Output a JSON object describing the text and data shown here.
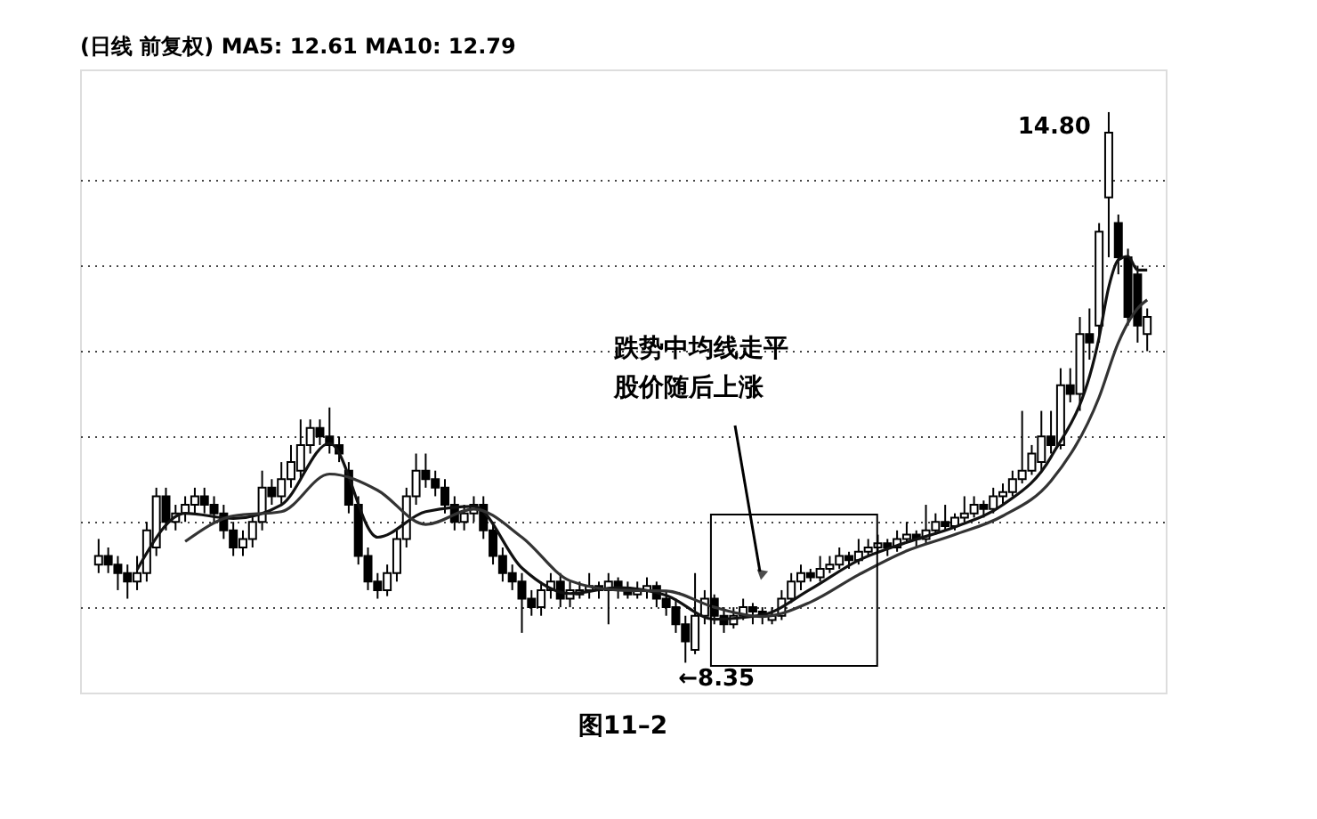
{
  "chart_data": {
    "type": "candlestick",
    "title": "(日线 前复权) MA5: 12.61 MA10: 12.79",
    "categories": [
      null,
      null,
      null,
      null,
      null,
      null,
      null,
      null,
      null,
      null,
      null,
      null,
      null,
      null,
      null,
      null,
      null,
      null,
      null,
      null,
      null,
      null,
      null,
      null,
      null,
      null,
      null,
      null,
      null,
      null,
      null,
      null,
      null,
      null,
      null,
      null,
      null,
      null,
      null,
      null,
      null,
      null,
      null,
      null,
      null,
      null,
      null,
      null,
      null,
      null,
      null,
      null,
      null,
      null,
      null,
      null,
      null,
      null,
      null,
      null,
      null,
      null,
      null,
      null,
      null,
      null,
      null,
      null,
      null,
      null,
      null,
      null,
      null,
      null,
      null,
      null,
      null,
      null,
      null,
      null,
      null,
      null,
      null,
      null,
      null,
      null,
      null,
      null,
      null,
      null,
      null,
      null,
      null,
      null,
      null,
      null,
      null,
      null,
      null,
      null,
      null,
      null,
      null,
      null,
      null,
      null,
      null,
      null,
      null,
      null
    ],
    "ohlc": [
      [
        9.5,
        9.8,
        9.4,
        9.6
      ],
      [
        9.6,
        9.7,
        9.4,
        9.5
      ],
      [
        9.5,
        9.6,
        9.2,
        9.4
      ],
      [
        9.4,
        9.5,
        9.1,
        9.3
      ],
      [
        9.3,
        9.6,
        9.2,
        9.4
      ],
      [
        9.4,
        10.0,
        9.3,
        9.9
      ],
      [
        9.7,
        10.4,
        9.6,
        10.3
      ],
      [
        10.3,
        10.4,
        9.9,
        10.0
      ],
      [
        10.0,
        10.2,
        9.9,
        10.1
      ],
      [
        10.1,
        10.3,
        10.0,
        10.2
      ],
      [
        10.2,
        10.4,
        10.1,
        10.3
      ],
      [
        10.3,
        10.4,
        10.1,
        10.2
      ],
      [
        10.2,
        10.3,
        10.0,
        10.1
      ],
      [
        10.1,
        10.2,
        9.8,
        9.9
      ],
      [
        9.9,
        10.0,
        9.6,
        9.7
      ],
      [
        9.7,
        9.9,
        9.6,
        9.8
      ],
      [
        9.8,
        10.1,
        9.7,
        10.0
      ],
      [
        10.0,
        10.6,
        9.9,
        10.4
      ],
      [
        10.4,
        10.5,
        10.2,
        10.3
      ],
      [
        10.3,
        10.7,
        10.2,
        10.5
      ],
      [
        10.5,
        10.9,
        10.4,
        10.7
      ],
      [
        10.6,
        11.2,
        10.5,
        10.9
      ],
      [
        10.9,
        11.2,
        10.8,
        11.1
      ],
      [
        11.1,
        11.2,
        10.9,
        11.0
      ],
      [
        11.0,
        11.34,
        10.8,
        10.9
      ],
      [
        10.9,
        11.0,
        10.7,
        10.8
      ],
      [
        10.6,
        10.7,
        10.1,
        10.2
      ],
      [
        10.2,
        10.3,
        9.5,
        9.6
      ],
      [
        9.6,
        9.7,
        9.2,
        9.3
      ],
      [
        9.3,
        9.4,
        9.1,
        9.2
      ],
      [
        9.2,
        9.5,
        9.13,
        9.4
      ],
      [
        9.4,
        9.9,
        9.3,
        9.8
      ],
      [
        9.8,
        10.4,
        9.7,
        10.3
      ],
      [
        10.3,
        10.8,
        10.2,
        10.6
      ],
      [
        10.6,
        10.8,
        10.4,
        10.5
      ],
      [
        10.5,
        10.6,
        10.3,
        10.4
      ],
      [
        10.4,
        10.5,
        10.1,
        10.2
      ],
      [
        10.2,
        10.3,
        9.9,
        10.0
      ],
      [
        10.0,
        10.2,
        9.9,
        10.1
      ],
      [
        10.1,
        10.3,
        10.0,
        10.2
      ],
      [
        10.2,
        10.3,
        9.8,
        9.9
      ],
      [
        9.9,
        10.0,
        9.5,
        9.6
      ],
      [
        9.6,
        9.7,
        9.3,
        9.4
      ],
      [
        9.4,
        9.5,
        9.2,
        9.3
      ],
      [
        9.3,
        9.4,
        8.7,
        9.1
      ],
      [
        9.1,
        9.2,
        8.9,
        9.0
      ],
      [
        9.0,
        9.3,
        8.9,
        9.2
      ],
      [
        9.2,
        9.4,
        9.1,
        9.3
      ],
      [
        9.3,
        9.4,
        9.0,
        9.1
      ],
      [
        9.1,
        9.3,
        9.0,
        9.2
      ],
      [
        9.15,
        9.3,
        9.1,
        9.2
      ],
      [
        9.2,
        9.4,
        9.1,
        9.25
      ],
      [
        9.25,
        9.3,
        9.1,
        9.2
      ],
      [
        9.2,
        9.4,
        8.8,
        9.3
      ],
      [
        9.3,
        9.35,
        9.1,
        9.2
      ],
      [
        9.2,
        9.3,
        9.1,
        9.15
      ],
      [
        9.15,
        9.3,
        9.1,
        9.2
      ],
      [
        9.2,
        9.35,
        9.1,
        9.25
      ],
      [
        9.25,
        9.3,
        9.0,
        9.1
      ],
      [
        9.1,
        9.2,
        8.9,
        9.0
      ],
      [
        9.0,
        9.1,
        8.7,
        8.8
      ],
      [
        8.8,
        8.9,
        8.35,
        8.6
      ],
      [
        8.5,
        9.4,
        8.45,
        8.9
      ],
      [
        8.9,
        9.2,
        8.8,
        9.1
      ],
      [
        9.1,
        9.15,
        8.8,
        8.9
      ],
      [
        8.9,
        9.0,
        8.7,
        8.8
      ],
      [
        8.8,
        9.0,
        8.75,
        8.9
      ],
      [
        8.9,
        9.1,
        8.85,
        9.0
      ],
      [
        9.0,
        9.05,
        8.8,
        8.95
      ],
      [
        8.95,
        9.0,
        8.8,
        8.9
      ],
      [
        8.85,
        9.0,
        8.8,
        8.9
      ],
      [
        8.9,
        9.2,
        8.85,
        9.1
      ],
      [
        9.1,
        9.4,
        9.05,
        9.3
      ],
      [
        9.3,
        9.5,
        9.2,
        9.4
      ],
      [
        9.4,
        9.45,
        9.3,
        9.35
      ],
      [
        9.35,
        9.6,
        9.3,
        9.45
      ],
      [
        9.45,
        9.6,
        9.4,
        9.5
      ],
      [
        9.5,
        9.7,
        9.45,
        9.6
      ],
      [
        9.6,
        9.65,
        9.45,
        9.55
      ],
      [
        9.55,
        9.8,
        9.5,
        9.65
      ],
      [
        9.65,
        9.8,
        9.6,
        9.7
      ],
      [
        9.7,
        9.85,
        9.65,
        9.75
      ],
      [
        9.75,
        9.8,
        9.6,
        9.7
      ],
      [
        9.7,
        9.9,
        9.65,
        9.8
      ],
      [
        9.8,
        10.0,
        9.75,
        9.85
      ],
      [
        9.85,
        9.9,
        9.7,
        9.8
      ],
      [
        9.8,
        10.2,
        9.75,
        9.9
      ],
      [
        9.9,
        10.1,
        9.85,
        10.0
      ],
      [
        10.0,
        10.2,
        9.9,
        9.95
      ],
      [
        9.95,
        10.1,
        9.9,
        10.05
      ],
      [
        10.05,
        10.3,
        10.0,
        10.1
      ],
      [
        10.1,
        10.3,
        10.05,
        10.2
      ],
      [
        10.2,
        10.25,
        10.05,
        10.15
      ],
      [
        10.15,
        10.4,
        10.1,
        10.3
      ],
      [
        10.3,
        10.45,
        10.2,
        10.35
      ],
      [
        10.35,
        10.6,
        10.3,
        10.5
      ],
      [
        10.5,
        11.3,
        10.45,
        10.6
      ],
      [
        10.6,
        10.9,
        10.55,
        10.8
      ],
      [
        10.7,
        11.3,
        10.6,
        11.0
      ],
      [
        11.0,
        11.3,
        10.8,
        10.9
      ],
      [
        10.9,
        11.8,
        10.85,
        11.6
      ],
      [
        11.6,
        11.8,
        11.4,
        11.5
      ],
      [
        11.5,
        12.4,
        11.3,
        12.2
      ],
      [
        12.2,
        12.5,
        11.9,
        12.1
      ],
      [
        12.3,
        13.5,
        12.1,
        13.4
      ],
      [
        13.8,
        14.8,
        13.1,
        14.56
      ],
      [
        13.5,
        13.6,
        12.9,
        13.1
      ],
      [
        13.1,
        13.2,
        12.3,
        12.4
      ],
      [
        12.9,
        13.0,
        12.1,
        12.3
      ],
      [
        12.2,
        12.5,
        12.0,
        12.4
      ]
    ],
    "series": [
      {
        "type": "line",
        "color": "#111111",
        "values": [
          null,
          null,
          null,
          null,
          9.44,
          null,
          null,
          null,
          null,
          10.1,
          null,
          null,
          null,
          null,
          10.04,
          null,
          null,
          null,
          null,
          10.2,
          null,
          null,
          null,
          null,
          10.92,
          null,
          null,
          null,
          null,
          9.82,
          null,
          null,
          null,
          null,
          10.12,
          null,
          null,
          null,
          null,
          10.18,
          null,
          null,
          null,
          null,
          9.46,
          null,
          null,
          null,
          null,
          9.16,
          null,
          null,
          null,
          null,
          9.23,
          null,
          null,
          null,
          null,
          9.14,
          null,
          null,
          null,
          null,
          8.86,
          null,
          null,
          null,
          null,
          8.91,
          null,
          null,
          null,
          null,
          9.21,
          null,
          null,
          null,
          null,
          9.55,
          null,
          null,
          null,
          null,
          9.76,
          null,
          null,
          null,
          null,
          9.94,
          null,
          null,
          null,
          null,
          10.2,
          null,
          null,
          null,
          null,
          10.76,
          null,
          null,
          null,
          null,
          12.16,
          12.75,
          13.07,
          13.11,
          12.95,
          12.95
        ]
      },
      {
        "type": "line",
        "color": "#333333",
        "values": [
          null,
          null,
          null,
          null,
          null,
          null,
          null,
          null,
          null,
          9.77,
          null,
          null,
          null,
          null,
          10.07,
          null,
          null,
          null,
          null,
          10.12,
          null,
          null,
          null,
          null,
          10.56,
          null,
          null,
          null,
          null,
          10.37,
          null,
          null,
          null,
          null,
          9.97,
          null,
          null,
          null,
          null,
          10.15,
          null,
          null,
          null,
          null,
          9.82,
          null,
          null,
          null,
          null,
          9.31,
          null,
          null,
          null,
          null,
          9.2,
          null,
          null,
          null,
          null,
          9.19,
          null,
          null,
          null,
          null,
          9.0,
          null,
          null,
          null,
          null,
          8.89,
          null,
          null,
          null,
          null,
          9.06,
          null,
          null,
          null,
          null,
          9.38,
          null,
          null,
          null,
          null,
          9.66,
          null,
          null,
          null,
          null,
          9.85,
          null,
          null,
          null,
          null,
          10.07,
          null,
          null,
          null,
          null,
          10.48,
          null,
          null,
          null,
          null,
          11.46,
          null,
          12.1,
          null,
          12.5,
          12.6
        ]
      }
    ],
    "ylim": [
      8.0,
      15.3
    ],
    "yticks": [
      {
        "value": 9,
        "label": null
      },
      {
        "value": 10,
        "label": null
      },
      {
        "value": 11,
        "label": null
      },
      {
        "value": 12,
        "label": null
      },
      {
        "value": 13,
        "label": null
      },
      {
        "value": 14,
        "label": null
      }
    ],
    "tick_labels": false,
    "grid": "y",
    "annotations": [
      "跌势中均线走平股价随后上涨",
      "14.80",
      "←8.35",
      "图11–2"
    ]
  }
}
